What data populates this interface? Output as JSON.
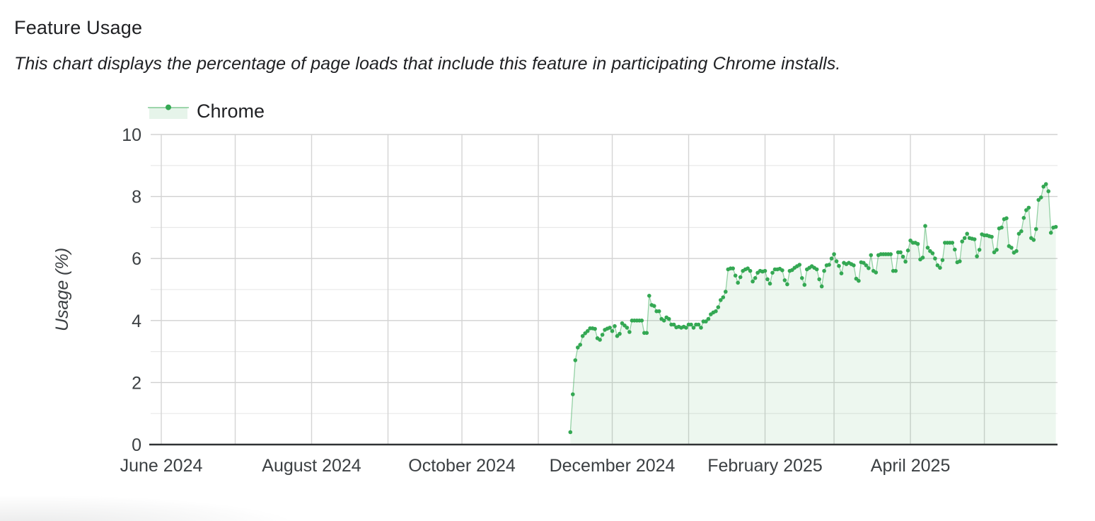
{
  "header": {
    "title": "Feature Usage",
    "subtitle": "This chart displays the percentage of page loads that include this feature in participating Chrome installs."
  },
  "legend": {
    "label": "Chrome"
  },
  "colors": {
    "accent_green": "#34a853",
    "line_green": "rgba(52,168,83,0.5)",
    "fill_green": "rgba(52,168,83,0.09)",
    "grid_major": "#d0d0d0",
    "grid_minor": "#e9e9e9",
    "grid_vertical": "#d4d4d4",
    "axis_line": "#303234",
    "tick_text": "#3c4043",
    "text": "#202124"
  },
  "chart_data": {
    "type": "area",
    "title": "Feature Usage",
    "xlabel": "",
    "ylabel": "Usage (%)",
    "ylim": [
      0,
      10
    ],
    "grid": true,
    "legend_position": "top-left",
    "y_tick_values": [
      0,
      2,
      4,
      6,
      8,
      10
    ],
    "y_tick_labels": [
      "0",
      "2",
      "4",
      "6",
      "8",
      "10"
    ],
    "y_minor_tick_values": [
      1,
      3,
      5,
      7,
      9
    ],
    "x_tick_labels": [
      "June 2024",
      "August 2024",
      "October 2024",
      "December 2024",
      "February 2025",
      "April 2025"
    ],
    "x_domain_months": [
      "2024-06",
      "2025-05"
    ],
    "series": [
      {
        "name": "Chrome",
        "unit": "%",
        "color": "#34a853",
        "start_date": "2024-11-14",
        "interval": "daily",
        "values": [
          0.4,
          1.62,
          2.72,
          3.13,
          3.22,
          3.5,
          3.59,
          3.66,
          3.75,
          3.75,
          3.73,
          3.43,
          3.38,
          3.54,
          3.7,
          3.74,
          3.77,
          3.66,
          3.82,
          3.5,
          3.57,
          3.91,
          3.84,
          3.77,
          3.63,
          4.0,
          4.0,
          4.0,
          4.0,
          4.0,
          3.6,
          3.6,
          4.8,
          4.5,
          4.47,
          4.3,
          4.3,
          4.05,
          4.0,
          4.1,
          4.05,
          3.87,
          3.87,
          3.78,
          3.8,
          3.77,
          3.8,
          3.77,
          3.87,
          3.87,
          3.77,
          3.87,
          3.87,
          3.77,
          3.97,
          3.97,
          4.05,
          4.2,
          4.26,
          4.3,
          4.43,
          4.66,
          4.75,
          4.93,
          5.65,
          5.68,
          5.68,
          5.45,
          5.22,
          5.4,
          5.6,
          5.65,
          5.68,
          5.6,
          5.26,
          5.37,
          5.54,
          5.6,
          5.58,
          5.6,
          5.33,
          5.19,
          5.54,
          5.65,
          5.65,
          5.67,
          5.62,
          5.3,
          5.17,
          5.6,
          5.63,
          5.7,
          5.75,
          5.8,
          5.37,
          5.15,
          5.65,
          5.7,
          5.75,
          5.7,
          5.65,
          5.33,
          5.1,
          5.6,
          5.78,
          5.8,
          6.0,
          6.14,
          5.91,
          5.76,
          5.52,
          5.86,
          5.82,
          5.86,
          5.82,
          5.78,
          5.35,
          5.28,
          5.88,
          5.86,
          5.78,
          5.69,
          6.11,
          5.6,
          5.55,
          6.11,
          6.14,
          6.14,
          6.14,
          6.14,
          6.14,
          5.6,
          5.6,
          6.2,
          6.2,
          6.06,
          5.9,
          6.26,
          6.58,
          6.51,
          6.51,
          6.47,
          5.97,
          6.03,
          7.05,
          6.35,
          6.24,
          6.17,
          6.0,
          5.78,
          5.7,
          5.95,
          6.51,
          6.51,
          6.51,
          6.51,
          6.29,
          5.88,
          5.91,
          6.55,
          6.66,
          6.8,
          6.66,
          6.64,
          6.62,
          6.07,
          6.28,
          6.78,
          6.75,
          6.75,
          6.72,
          6.7,
          6.2,
          6.28,
          6.97,
          7.0,
          7.27,
          7.3,
          6.4,
          6.35,
          6.19,
          6.24,
          6.8,
          6.88,
          7.31,
          7.56,
          7.64,
          6.66,
          6.6,
          6.95,
          7.89,
          7.97,
          8.32,
          8.4,
          8.17,
          6.83,
          7.0,
          7.02
        ]
      }
    ]
  }
}
